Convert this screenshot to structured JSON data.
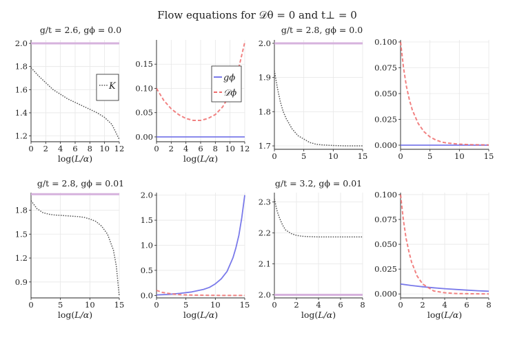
{
  "suptitle": "Flow equations for 𝒟θ = 0 and t⊥ = 0",
  "colors": {
    "K": "#555555",
    "g_phi": "#6a6ae8",
    "D_phi": "#ef6b6b",
    "ref": "#d6b2dd"
  },
  "legend": {
    "K": "K",
    "g_phi": "gϕ",
    "D_phi": "𝒟ϕ"
  },
  "chart_data": [
    {
      "type": "line",
      "title": "g/t = 2.6, gϕ = 0.0",
      "xlabel": "log(L/α)",
      "ylabel": "",
      "xlim": [
        0,
        12
      ],
      "ylim": [
        1.15,
        2.03
      ],
      "xticks": [
        0,
        2,
        4,
        6,
        8,
        10,
        12
      ],
      "xticklabels": [
        "0",
        "2",
        "4",
        "6",
        "8",
        "10",
        "12"
      ],
      "yticks": [
        1.2,
        1.4,
        1.6,
        1.8,
        2.0
      ],
      "yticklabels": [
        "1.2",
        "1.4",
        "1.6",
        "1.8",
        "2.0"
      ],
      "legend": [
        "K"
      ],
      "legend_position": "right",
      "series": [
        {
          "name": "K",
          "color_key": "K",
          "style": "dot",
          "x": [
            0,
            1,
            2,
            3,
            4,
            5,
            6,
            7,
            8,
            9,
            10,
            11,
            12
          ],
          "y": [
            1.79,
            1.72,
            1.66,
            1.6,
            1.56,
            1.52,
            1.49,
            1.46,
            1.43,
            1.4,
            1.36,
            1.3,
            1.17
          ]
        },
        {
          "name": "ref",
          "color_key": "ref",
          "style": "thick",
          "x": [
            0,
            12
          ],
          "y": [
            2.0,
            2.0
          ]
        }
      ]
    },
    {
      "type": "line",
      "title": "",
      "xlabel": "log(L/α)",
      "ylabel": "",
      "xlim": [
        0,
        12
      ],
      "ylim": [
        -0.01,
        0.2
      ],
      "xticks": [
        0,
        2,
        4,
        6,
        8,
        10,
        12
      ],
      "xticklabels": [
        "0",
        "2",
        "4",
        "6",
        "8",
        "10",
        "12"
      ],
      "yticks": [
        0,
        0.05,
        0.1,
        0.15
      ],
      "yticklabels": [
        "0.00",
        "0.05",
        "0.10",
        "0.15"
      ],
      "legend": [
        "g_phi",
        "D_phi"
      ],
      "legend_position": "top-right",
      "series": [
        {
          "name": "g_phi",
          "color_key": "g_phi",
          "style": "solid",
          "x": [
            0,
            12
          ],
          "y": [
            0.0,
            0.0
          ]
        },
        {
          "name": "D_phi",
          "color_key": "D_phi",
          "style": "dash",
          "x": [
            0,
            1,
            2,
            3,
            4,
            5,
            6,
            7,
            8,
            9,
            10,
            11,
            12
          ],
          "y": [
            0.1,
            0.075,
            0.058,
            0.046,
            0.038,
            0.034,
            0.034,
            0.038,
            0.046,
            0.062,
            0.088,
            0.13,
            0.195
          ]
        }
      ]
    },
    {
      "type": "line",
      "title": "g/t = 2.8, gϕ = 0.0",
      "xlabel": "",
      "ylabel": "",
      "xlim": [
        0,
        15
      ],
      "ylim": [
        1.69,
        2.01
      ],
      "xticks": [
        0,
        5,
        10,
        15
      ],
      "xticklabels": [
        "0",
        "5",
        "10",
        "15"
      ],
      "yticks": [
        1.7,
        1.8,
        1.9,
        2.0
      ],
      "yticklabels": [
        "1.7",
        "1.8",
        "1.9",
        "2.0"
      ],
      "legend": [],
      "legend_position": "",
      "series": [
        {
          "name": "K",
          "color_key": "K",
          "style": "dot",
          "x": [
            0,
            0.5,
            1,
            1.5,
            2,
            3,
            4,
            5,
            6,
            7,
            8,
            10,
            12,
            15
          ],
          "y": [
            1.92,
            1.87,
            1.83,
            1.8,
            1.78,
            1.75,
            1.73,
            1.72,
            1.71,
            1.705,
            1.703,
            1.701,
            1.7,
            1.7
          ]
        },
        {
          "name": "ref",
          "color_key": "ref",
          "style": "thick",
          "x": [
            0,
            15
          ],
          "y": [
            2.0,
            2.0
          ]
        }
      ]
    },
    {
      "type": "line",
      "title": "",
      "xlabel": "",
      "ylabel": "",
      "xlim": [
        0,
        15
      ],
      "ylim": [
        -0.004,
        0.102
      ],
      "xticks": [
        0,
        5,
        10,
        15
      ],
      "xticklabels": [
        "0",
        "5",
        "10",
        "15"
      ],
      "yticks": [
        0,
        0.025,
        0.05,
        0.075,
        0.1
      ],
      "yticklabels": [
        "0.000",
        "0.025",
        "0.050",
        "0.075",
        "0.100"
      ],
      "legend": [],
      "legend_position": "",
      "series": [
        {
          "name": "g_phi",
          "color_key": "g_phi",
          "style": "solid",
          "x": [
            0,
            15
          ],
          "y": [
            0.0,
            0.0
          ]
        },
        {
          "name": "D_phi",
          "color_key": "D_phi",
          "style": "dash",
          "x": [
            0,
            0.5,
            1,
            1.5,
            2,
            3,
            4,
            5,
            6,
            7,
            8,
            10,
            12,
            15
          ],
          "y": [
            0.1,
            0.075,
            0.057,
            0.044,
            0.034,
            0.021,
            0.013,
            0.008,
            0.005,
            0.003,
            0.002,
            0.001,
            0.0005,
            0.0002
          ]
        }
      ]
    },
    {
      "type": "line",
      "title": "g/t = 2.8, gϕ = 0.01",
      "xlabel": "log(L/α)",
      "ylabel": "",
      "xlim": [
        0,
        15
      ],
      "ylim": [
        0.7,
        2.02
      ],
      "xticks": [
        0,
        5,
        10,
        15
      ],
      "xticklabels": [
        "0",
        "5",
        "10",
        "15"
      ],
      "yticks": [
        0.9,
        1.2,
        1.5,
        1.8
      ],
      "yticklabels": [
        "0.9",
        "1.2",
        "1.5",
        "1.8"
      ],
      "legend": [],
      "legend_position": "",
      "series": [
        {
          "name": "K",
          "color_key": "K",
          "style": "dot",
          "x": [
            0,
            1,
            2,
            3,
            4,
            5,
            6,
            7,
            8,
            9,
            10,
            11,
            12,
            13,
            14,
            14.5,
            15
          ],
          "y": [
            1.92,
            1.82,
            1.77,
            1.75,
            1.74,
            1.735,
            1.73,
            1.725,
            1.72,
            1.71,
            1.69,
            1.66,
            1.6,
            1.5,
            1.3,
            1.1,
            0.72
          ]
        },
        {
          "name": "ref",
          "color_key": "ref",
          "style": "thick",
          "x": [
            0,
            15
          ],
          "y": [
            2.0,
            2.0
          ]
        }
      ]
    },
    {
      "type": "line",
      "title": "",
      "xlabel": "log(L/α)",
      "ylabel": "",
      "xlim": [
        0,
        15
      ],
      "ylim": [
        -0.05,
        2.05
      ],
      "xticks": [
        0,
        5,
        10,
        15
      ],
      "xticklabels": [
        "0",
        "5",
        "10",
        "15"
      ],
      "yticks": [
        0,
        0.5,
        1.0,
        1.5,
        2.0
      ],
      "yticklabels": [
        "0.0",
        "0.5",
        "1.0",
        "1.5",
        "2.0"
      ],
      "legend": [],
      "legend_position": "",
      "series": [
        {
          "name": "g_phi",
          "color_key": "g_phi",
          "style": "solid",
          "x": [
            0,
            2,
            4,
            6,
            8,
            9,
            10,
            11,
            12,
            13,
            13.5,
            14,
            14.5,
            15
          ],
          "y": [
            0.01,
            0.02,
            0.04,
            0.07,
            0.12,
            0.16,
            0.23,
            0.33,
            0.48,
            0.75,
            0.95,
            1.2,
            1.55,
            2.0
          ]
        },
        {
          "name": "D_phi",
          "color_key": "D_phi",
          "style": "dash",
          "x": [
            0,
            1,
            2,
            3,
            4,
            5,
            6,
            8,
            10,
            15
          ],
          "y": [
            0.1,
            0.06,
            0.04,
            0.025,
            0.015,
            0.01,
            0.006,
            0.003,
            0.001,
            0.0
          ]
        }
      ]
    },
    {
      "type": "line",
      "title": "g/t = 3.2, gϕ = 0.01",
      "xlabel": "log(L/α)",
      "ylabel": "",
      "xlim": [
        0,
        8
      ],
      "ylim": [
        1.99,
        2.33
      ],
      "xticks": [
        0,
        2,
        4,
        6,
        8
      ],
      "xticklabels": [
        "0",
        "2",
        "4",
        "6",
        "8"
      ],
      "yticks": [
        2.0,
        2.1,
        2.2,
        2.3
      ],
      "yticklabels": [
        "2.0",
        "2.1",
        "2.2",
        "2.3"
      ],
      "legend": [],
      "legend_position": "",
      "series": [
        {
          "name": "K",
          "color_key": "K",
          "style": "dot",
          "x": [
            0,
            0.25,
            0.5,
            0.75,
            1,
            1.5,
            2,
            2.5,
            3,
            4,
            5,
            6,
            8
          ],
          "y": [
            2.31,
            2.27,
            2.245,
            2.225,
            2.21,
            2.198,
            2.192,
            2.189,
            2.188,
            2.187,
            2.187,
            2.187,
            2.187
          ]
        },
        {
          "name": "ref",
          "color_key": "ref",
          "style": "thick",
          "x": [
            0,
            8
          ],
          "y": [
            2.0,
            2.0
          ]
        }
      ]
    },
    {
      "type": "line",
      "title": "",
      "xlabel": "log(L/α)",
      "ylabel": "",
      "xlim": [
        0,
        8
      ],
      "ylim": [
        -0.004,
        0.102
      ],
      "xticks": [
        0,
        2,
        4,
        6,
        8
      ],
      "xticklabels": [
        "0",
        "2",
        "4",
        "6",
        "8"
      ],
      "yticks": [
        0,
        0.025,
        0.05,
        0.075,
        0.1
      ],
      "yticklabels": [
        "0.000",
        "0.025",
        "0.050",
        "0.075",
        "0.100"
      ],
      "legend": [],
      "legend_position": "",
      "series": [
        {
          "name": "g_phi",
          "color_key": "g_phi",
          "style": "solid",
          "x": [
            0,
            1,
            2,
            3,
            4,
            5,
            6,
            7,
            8
          ],
          "y": [
            0.01,
            0.0085,
            0.0072,
            0.0062,
            0.0053,
            0.0045,
            0.0038,
            0.0032,
            0.0027
          ]
        },
        {
          "name": "D_phi",
          "color_key": "D_phi",
          "style": "dash",
          "x": [
            0,
            0.25,
            0.5,
            0.75,
            1,
            1.5,
            2,
            3,
            4,
            5,
            6,
            8
          ],
          "y": [
            0.1,
            0.075,
            0.056,
            0.043,
            0.032,
            0.018,
            0.01,
            0.003,
            0.0012,
            0.0004,
            0.0002,
            0.0
          ]
        }
      ]
    }
  ]
}
